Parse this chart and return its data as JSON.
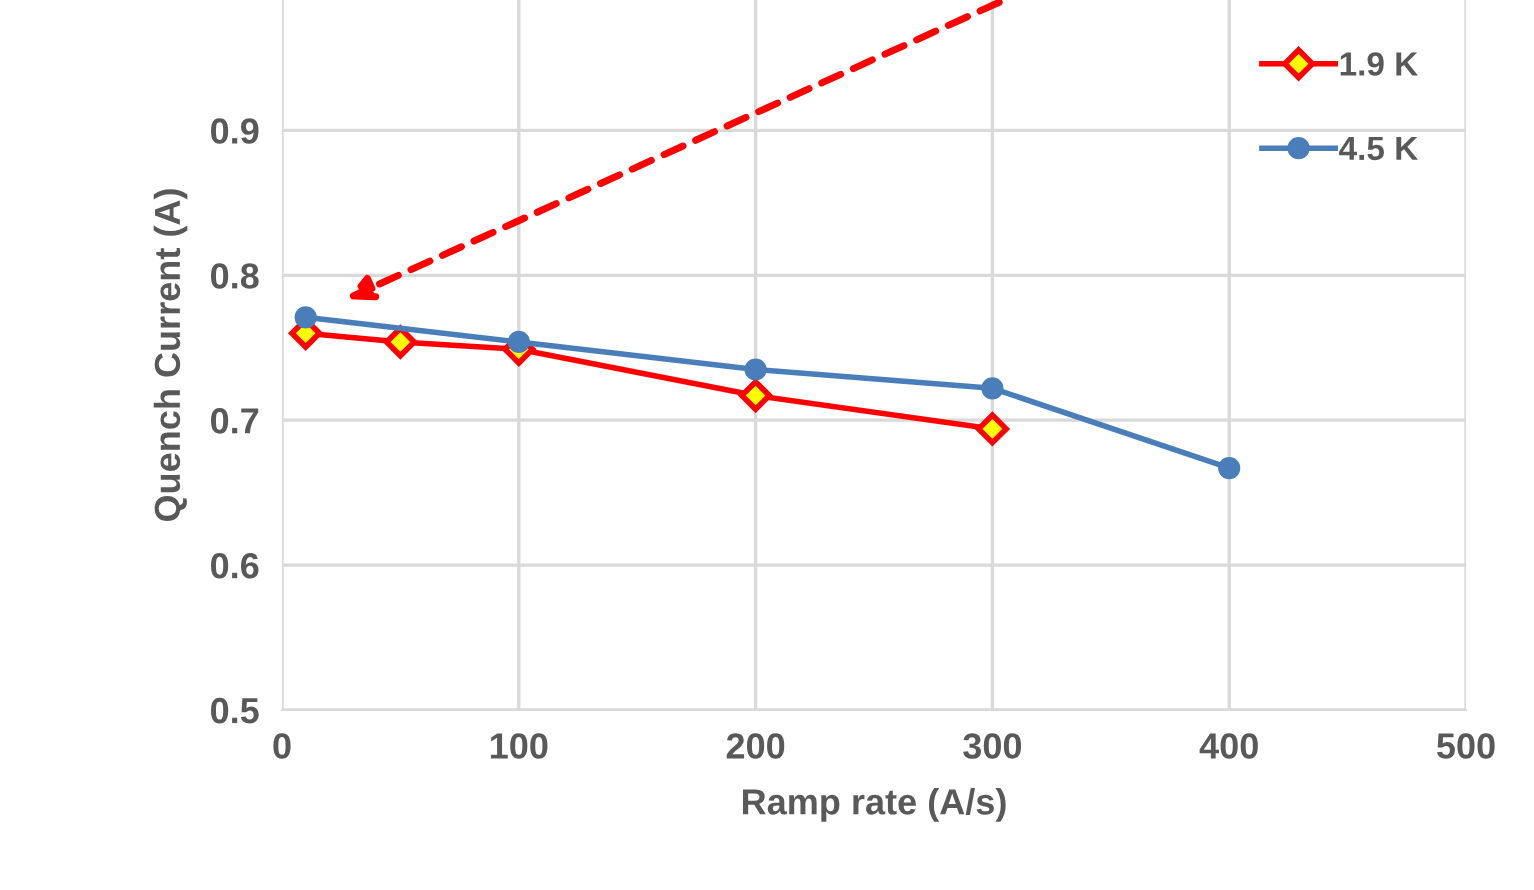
{
  "chart_data": {
    "type": "line",
    "xlabel": "Ramp rate (A/s)",
    "ylabel": "Quench Current (A)",
    "xlim": [
      0,
      500
    ],
    "xticks": [
      0,
      100,
      200,
      300,
      400,
      500
    ],
    "ylim": [
      0.5,
      0.99
    ],
    "yticks": [
      0.5,
      0.6,
      0.7,
      0.8,
      0.9
    ],
    "grid": true,
    "legend": "top right",
    "series": [
      {
        "name": "1.9 K",
        "color": "#ff0000",
        "marker": "diamond",
        "x": [
          10,
          50,
          100,
          200,
          300
        ],
        "values": [
          0.76,
          0.754,
          0.749,
          0.717,
          0.694
        ]
      },
      {
        "name": "4.5 K",
        "color": "#4a7ebb",
        "marker": "circle",
        "x": [
          10,
          100,
          200,
          300,
          400
        ],
        "values": [
          0.771,
          0.754,
          0.735,
          0.722,
          0.667
        ]
      }
    ]
  }
}
